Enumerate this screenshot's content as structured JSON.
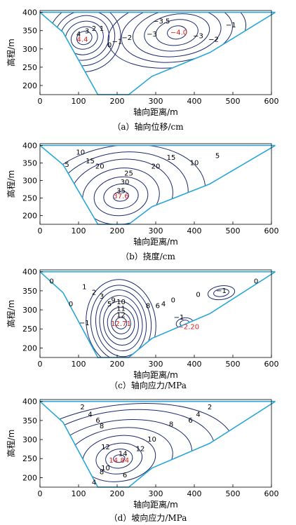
{
  "chart_data": [
    {
      "type": "contour",
      "caption": "（a）轴向位移/cm",
      "xlabel": "轴向距离/m",
      "ylabel": "高程/m",
      "xlim": [
        0,
        600
      ],
      "ylim": [
        175,
        405
      ],
      "xticks": [
        "0",
        "100",
        "200",
        "300",
        "400",
        "500",
        "600"
      ],
      "yticks": [
        "200",
        "250",
        "300",
        "350",
        "400"
      ],
      "extremes": [
        {
          "text": "4.4",
          "x": 110,
          "y": 325
        },
        {
          "text": "−4.0",
          "x": 360,
          "y": 345
        }
      ],
      "contour_labels": [
        {
          "text": "4",
          "x": 100,
          "y": 340
        },
        {
          "text": "3",
          "x": 122,
          "y": 348
        },
        {
          "text": "2",
          "x": 140,
          "y": 355
        },
        {
          "text": "1",
          "x": 160,
          "y": 355
        },
        {
          "text": "0",
          "x": 180,
          "y": 310
        },
        {
          "text": "−1",
          "x": 200,
          "y": 320
        },
        {
          "text": "−2",
          "x": 225,
          "y": 330
        },
        {
          "text": "−3",
          "x": 290,
          "y": 340
        },
        {
          "text": "−3.5",
          "x": 315,
          "y": 375
        },
        {
          "text": "−3",
          "x": 410,
          "y": 335
        },
        {
          "text": "−2",
          "x": 450,
          "y": 325
        },
        {
          "text": "−1",
          "x": 495,
          "y": 365
        }
      ]
    },
    {
      "type": "contour",
      "caption": "（b）挠度/cm",
      "xlabel": "轴向距离/m",
      "ylabel": "高程/m",
      "xlim": [
        0,
        600
      ],
      "ylim": [
        175,
        405
      ],
      "xticks": [
        "0",
        "100",
        "200",
        "300",
        "400",
        "500",
        "600"
      ],
      "yticks": [
        "200",
        "250",
        "300",
        "350",
        "400"
      ],
      "extremes": [
        {
          "text": "37.6",
          "x": 210,
          "y": 255
        }
      ],
      "contour_labels": [
        {
          "text": "5",
          "x": 70,
          "y": 345
        },
        {
          "text": "10",
          "x": 105,
          "y": 380
        },
        {
          "text": "15",
          "x": 130,
          "y": 355
        },
        {
          "text": "20",
          "x": 155,
          "y": 340
        },
        {
          "text": "25",
          "x": 230,
          "y": 320
        },
        {
          "text": "30",
          "x": 220,
          "y": 295
        },
        {
          "text": "35",
          "x": 210,
          "y": 270
        },
        {
          "text": "20",
          "x": 300,
          "y": 340
        },
        {
          "text": "15",
          "x": 340,
          "y": 365
        },
        {
          "text": "10",
          "x": 400,
          "y": 350
        },
        {
          "text": "5",
          "x": 460,
          "y": 370
        }
      ]
    },
    {
      "type": "contour",
      "caption": "（c）轴向应力/MPa",
      "xlabel": "轴向距离/m",
      "ylabel": "高程/m",
      "xlim": [
        0,
        600
      ],
      "ylim": [
        175,
        405
      ],
      "xticks": [
        "0",
        "100",
        "200",
        "300",
        "400",
        "500",
        "600"
      ],
      "yticks": [
        "200",
        "250",
        "300",
        "350",
        "400"
      ],
      "extremes": [
        {
          "text": "12.71",
          "x": 210,
          "y": 263
        },
        {
          "text": "−2.20",
          "x": 385,
          "y": 255
        }
      ],
      "contour_labels": [
        {
          "text": "0",
          "x": 30,
          "y": 375
        },
        {
          "text": "0",
          "x": 80,
          "y": 315
        },
        {
          "text": "1",
          "x": 115,
          "y": 360
        },
        {
          "text": "2",
          "x": 140,
          "y": 345
        },
        {
          "text": "−1",
          "x": 115,
          "y": 265
        },
        {
          "text": "3",
          "x": 160,
          "y": 335
        },
        {
          "text": "5",
          "x": 180,
          "y": 315
        },
        {
          "text": "9",
          "x": 190,
          "y": 325
        },
        {
          "text": "10",
          "x": 210,
          "y": 320
        },
        {
          "text": "11",
          "x": 210,
          "y": 303
        },
        {
          "text": "12",
          "x": 210,
          "y": 286
        },
        {
          "text": "8",
          "x": 280,
          "y": 310
        },
        {
          "text": "6",
          "x": 305,
          "y": 310
        },
        {
          "text": "4",
          "x": 320,
          "y": 315
        },
        {
          "text": "0",
          "x": 345,
          "y": 325
        },
        {
          "text": "−1",
          "x": 360,
          "y": 280
        },
        {
          "text": "0",
          "x": 410,
          "y": 340
        },
        {
          "text": "−1",
          "x": 470,
          "y": 350
        },
        {
          "text": "0",
          "x": 560,
          "y": 375
        }
      ]
    },
    {
      "type": "contour",
      "caption": "（d）坡向应力/MPa",
      "xlabel": "轴向距离/m",
      "ylabel": "高程/m",
      "xlim": [
        0,
        600
      ],
      "ylim": [
        175,
        405
      ],
      "xticks": [
        "0",
        "100",
        "200",
        "300",
        "400",
        "500",
        "600"
      ],
      "yticks": [
        "200",
        "250",
        "300",
        "350",
        "400"
      ],
      "extremes": [
        {
          "text": "14.84",
          "x": 205,
          "y": 245
        }
      ],
      "contour_labels": [
        {
          "text": "2",
          "x": 110,
          "y": 385
        },
        {
          "text": "4",
          "x": 130,
          "y": 365
        },
        {
          "text": "6",
          "x": 150,
          "y": 350
        },
        {
          "text": "8",
          "x": 160,
          "y": 335
        },
        {
          "text": "4",
          "x": 410,
          "y": 365
        },
        {
          "text": "6",
          "x": 390,
          "y": 350
        },
        {
          "text": "8",
          "x": 340,
          "y": 340
        },
        {
          "text": "10",
          "x": 290,
          "y": 300
        },
        {
          "text": "12",
          "x": 170,
          "y": 280
        },
        {
          "text": "12",
          "x": 260,
          "y": 275
        },
        {
          "text": "14",
          "x": 215,
          "y": 262
        },
        {
          "text": "10",
          "x": 170,
          "y": 225
        },
        {
          "text": "8",
          "x": 160,
          "y": 215
        },
        {
          "text": "6",
          "x": 220,
          "y": 206
        },
        {
          "text": "4",
          "x": 140,
          "y": 187
        },
        {
          "text": "2",
          "x": 440,
          "y": 385
        }
      ]
    }
  ]
}
